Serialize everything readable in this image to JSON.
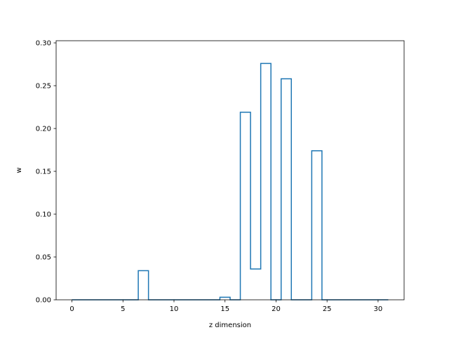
{
  "chart_data": {
    "type": "step",
    "title": "",
    "xlabel": "z dimension",
    "ylabel": "w",
    "xlim": [
      -1.55,
      32.55
    ],
    "ylim": [
      0.0,
      0.3025
    ],
    "xticks": [
      0,
      5,
      10,
      15,
      20,
      25,
      30
    ],
    "xtick_labels": [
      "0",
      "5",
      "10",
      "15",
      "20",
      "25",
      "30"
    ],
    "yticks": [
      0.0,
      0.05,
      0.1,
      0.15,
      0.2,
      0.25,
      0.3
    ],
    "ytick_labels": [
      "0.00",
      "0.05",
      "0.10",
      "0.15",
      "0.20",
      "0.25",
      "0.30"
    ],
    "grid": false,
    "series": [
      {
        "color": "#1f77b4",
        "x": [
          0,
          1,
          2,
          3,
          4,
          5,
          6,
          7,
          8,
          9,
          10,
          11,
          12,
          13,
          14,
          15,
          16,
          17,
          18,
          19,
          20,
          21,
          22,
          23,
          24,
          25,
          26,
          27,
          28,
          29,
          30,
          31
        ],
        "values": [
          0,
          0,
          0,
          0,
          0,
          0,
          0,
          0.034,
          0,
          0,
          0,
          0,
          0,
          0,
          0,
          0.003,
          0,
          0.219,
          0.036,
          0.276,
          0,
          0.258,
          0,
          0,
          0.174,
          0,
          0,
          0,
          0,
          0,
          0,
          0
        ]
      }
    ]
  }
}
